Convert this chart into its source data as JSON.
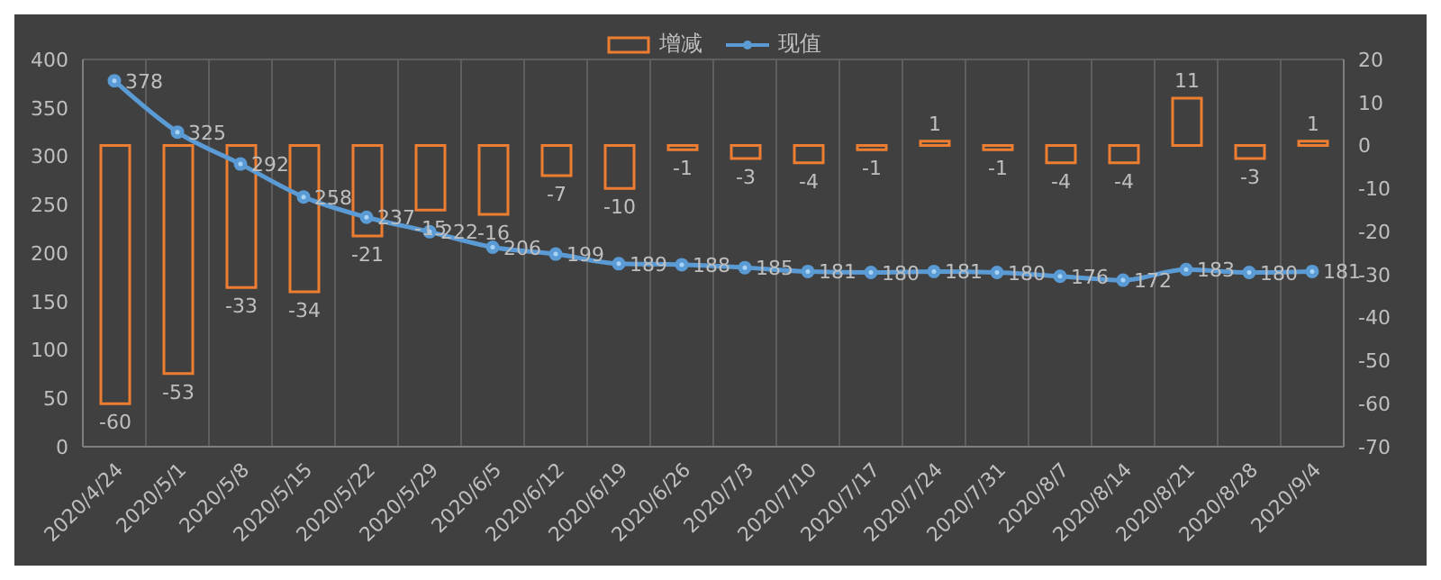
{
  "chart_data": {
    "type": "bar",
    "categories": [
      "2020/4/24",
      "2020/5/1",
      "2020/5/8",
      "2020/5/15",
      "2020/5/22",
      "2020/5/29",
      "2020/6/5",
      "2020/6/12",
      "2020/6/19",
      "2020/6/26",
      "2020/7/3",
      "2020/7/10",
      "2020/7/17",
      "2020/7/24",
      "2020/7/31",
      "2020/8/7",
      "2020/8/14",
      "2020/8/21",
      "2020/8/28",
      "2020/9/4"
    ],
    "series": [
      {
        "name": "增减",
        "axis": "y2",
        "color": "#ed7d31",
        "values": [
          -60,
          -53,
          -33,
          -34,
          -21,
          -15,
          -16,
          -7,
          -10,
          -1,
          -3,
          -4,
          -1,
          1,
          -1,
          -4,
          -4,
          11,
          -3,
          1
        ]
      },
      {
        "name": "现值",
        "type": "line",
        "color": "#5b9bd5",
        "marker": "circle",
        "values": [
          378,
          325,
          292,
          258,
          237,
          222,
          206,
          199,
          189,
          188,
          185,
          181,
          180,
          181,
          180,
          176,
          172,
          183,
          180,
          181
        ]
      }
    ],
    "ylim": [
      0,
      400
    ],
    "yticks": [
      0,
      50,
      100,
      150,
      200,
      250,
      300,
      350,
      400
    ],
    "y2lim": [
      -70,
      20
    ],
    "y2ticks": [
      -70,
      -60,
      -50,
      -40,
      -30,
      -20,
      -10,
      0,
      10,
      20
    ],
    "grid": true,
    "legend": "top",
    "data_labels": true
  }
}
